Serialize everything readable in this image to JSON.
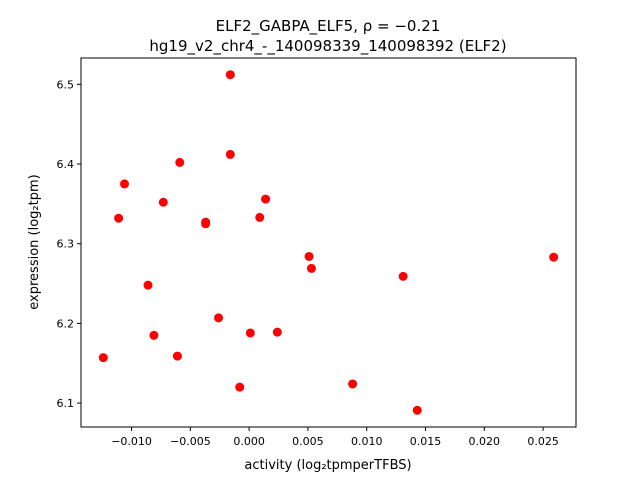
{
  "chart_data": {
    "type": "scatter",
    "title_line1": "ELF2_GABPA_ELF5, ρ = −0.21",
    "title_line2": "hg19_v2_chr4_-_140098339_140098392 (ELF2)",
    "xlabel": "activity (log₂tpmperTFBS)",
    "ylabel": "expression (log₂tpm)",
    "xlim": [
      -0.0143,
      0.0278
    ],
    "ylim": [
      6.07,
      6.533
    ],
    "xticks": [
      -0.01,
      -0.005,
      0.0,
      0.005,
      0.01,
      0.015,
      0.02,
      0.025
    ],
    "xtick_labels": [
      "−0.010",
      "−0.005",
      "0.000",
      "0.005",
      "0.010",
      "0.015",
      "0.020",
      "0.025"
    ],
    "yticks": [
      6.1,
      6.2,
      6.3,
      6.4,
      6.5
    ],
    "ytick_labels": [
      "6.1",
      "6.2",
      "6.3",
      "6.4",
      "6.5"
    ],
    "marker_color": "#ff0000",
    "points": [
      [
        -0.0016,
        6.512
      ],
      [
        -0.0016,
        6.412
      ],
      [
        -0.0059,
        6.402
      ],
      [
        -0.0106,
        6.375
      ],
      [
        -0.0073,
        6.352
      ],
      [
        0.0014,
        6.356
      ],
      [
        -0.0111,
        6.332
      ],
      [
        -0.0037,
        6.327
      ],
      [
        -0.0037,
        6.325
      ],
      [
        0.0009,
        6.333
      ],
      [
        0.0051,
        6.284
      ],
      [
        0.0053,
        6.269
      ],
      [
        0.0131,
        6.259
      ],
      [
        0.0259,
        6.283
      ],
      [
        -0.0086,
        6.248
      ],
      [
        -0.0026,
        6.207
      ],
      [
        -0.0081,
        6.185
      ],
      [
        0.0001,
        6.188
      ],
      [
        0.0024,
        6.189
      ],
      [
        -0.0124,
        6.157
      ],
      [
        -0.0061,
        6.159
      ],
      [
        -0.0008,
        6.12
      ],
      [
        0.0088,
        6.124
      ],
      [
        0.0143,
        6.091
      ]
    ]
  }
}
